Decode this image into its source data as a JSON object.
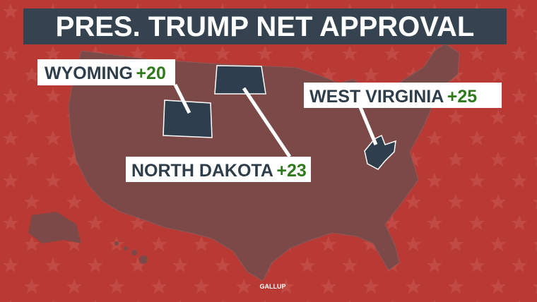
{
  "title": "PRES. TRUMP NET APPROVAL",
  "states": [
    {
      "name": "WYOMING",
      "value": "+20"
    },
    {
      "name": "NORTH DAKOTA",
      "value": "+23"
    },
    {
      "name": "WEST VIRGINIA",
      "value": "+25"
    }
  ],
  "source": "GALLUP"
}
